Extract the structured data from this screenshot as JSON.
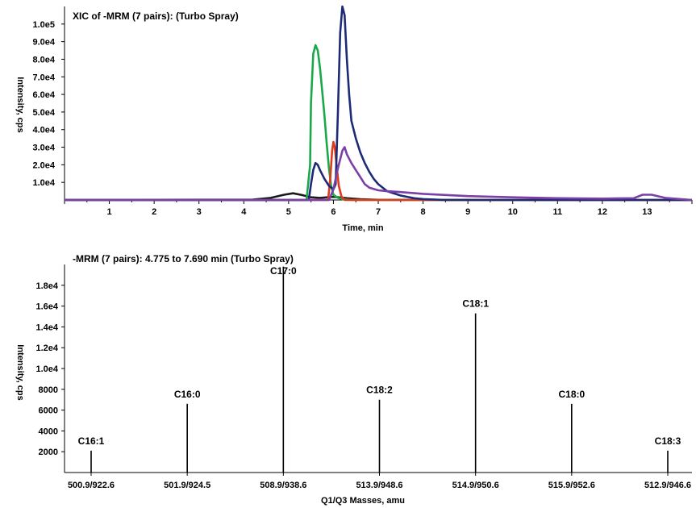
{
  "chart_data": [
    {
      "type": "line",
      "title": "XIC of -MRM (7 pairs): (Turbo Spray)",
      "xlabel": "Time, min",
      "ylabel": "Intensity, cps",
      "xlim": [
        0,
        14
      ],
      "ylim": [
        0,
        110000
      ],
      "x_ticks": [
        "1",
        "2",
        "3",
        "4",
        "5",
        "6",
        "7",
        "8",
        "9",
        "10",
        "11",
        "12",
        "13"
      ],
      "y_ticks": [
        "1.0e4",
        "2.0e4",
        "3.0e4",
        "4.0e4",
        "5.0e4",
        "6.0e4",
        "7.0e4",
        "8.0e4",
        "9.0e4",
        "1.0e5"
      ],
      "y_tick_values": [
        10000,
        20000,
        30000,
        40000,
        50000,
        60000,
        70000,
        80000,
        90000,
        100000
      ],
      "grid": false,
      "series": [
        {
          "color": "#1a1a1a",
          "x": [
            0,
            4.2,
            4.6,
            4.9,
            5.1,
            5.3,
            5.5,
            5.7,
            6.0,
            6.3,
            6.6,
            7.0,
            14
          ],
          "y": [
            0,
            200,
            1200,
            3000,
            3800,
            2800,
            1500,
            1200,
            1800,
            1000,
            400,
            100,
            0
          ]
        },
        {
          "color": "#1aa84a",
          "x": [
            0,
            5.4,
            5.48,
            5.5,
            5.55,
            5.6,
            5.65,
            5.7,
            5.75,
            5.8,
            5.85,
            5.9,
            5.95,
            6.0,
            6.1,
            6.2,
            6.4,
            14
          ],
          "y": [
            0,
            0,
            20000,
            55000,
            83000,
            88000,
            85000,
            75000,
            62000,
            48000,
            32000,
            18000,
            8000,
            3000,
            1200,
            500,
            0,
            0
          ]
        },
        {
          "color": "#e03a1e",
          "x": [
            0,
            5.88,
            5.93,
            5.97,
            6.0,
            6.03,
            6.07,
            6.12,
            6.18,
            6.25,
            14
          ],
          "y": [
            0,
            0,
            12000,
            28000,
            33000,
            30000,
            20000,
            8000,
            2000,
            0,
            0
          ]
        },
        {
          "color": "#1c2a78",
          "x": [
            0,
            5.45,
            5.5,
            5.55,
            5.6,
            5.65,
            5.7,
            5.8,
            5.9,
            6.0,
            6.05,
            6.1,
            6.15,
            6.2,
            6.25,
            6.3,
            6.35,
            6.4,
            6.5,
            6.6,
            6.7,
            6.8,
            6.9,
            7.0,
            7.2,
            7.5,
            7.8,
            8.0,
            8.5,
            14
          ],
          "y": [
            0,
            0,
            9000,
            17000,
            21000,
            20000,
            17000,
            12000,
            8000,
            6000,
            9000,
            50000,
            95000,
            110000,
            105000,
            80000,
            60000,
            45000,
            35000,
            27000,
            21000,
            16000,
            12000,
            9000,
            5000,
            2500,
            1000,
            500,
            0,
            0
          ]
        },
        {
          "color": "#7b3fa8",
          "x": [
            0,
            5.9,
            6.0,
            6.1,
            6.2,
            6.25,
            6.3,
            6.4,
            6.5,
            6.6,
            6.7,
            6.8,
            7.0,
            7.2,
            7.5,
            8.0,
            9.0,
            10.0,
            11.0,
            12.0,
            12.7,
            12.9,
            13.1,
            13.4,
            14
          ],
          "y": [
            0,
            0,
            6000,
            18000,
            28000,
            30000,
            26000,
            21000,
            17000,
            13000,
            9000,
            7000,
            5500,
            5000,
            4500,
            3500,
            2200,
            1500,
            1000,
            800,
            1000,
            3000,
            3000,
            1200,
            0
          ]
        }
      ]
    },
    {
      "type": "bar",
      "title": "-MRM (7 pairs): 4.775 to 7.690 min (Turbo Spray)",
      "xlabel": "Q1/Q3 Masses, amu",
      "ylabel": "Intensity, cps",
      "ylim": [
        0,
        20000
      ],
      "y_ticks": [
        "2000",
        "4000",
        "6000",
        "8000",
        "1.0e4",
        "1.2e4",
        "1.4e4",
        "1.6e4",
        "1.8e4"
      ],
      "y_tick_values": [
        2000,
        4000,
        6000,
        8000,
        10000,
        12000,
        14000,
        16000,
        18000
      ],
      "categories": [
        "500.9/922.6",
        "501.9/924.5",
        "508.9/938.6",
        "513.9/948.6",
        "514.9/950.6",
        "515.9/952.6",
        "512.9/946.6"
      ],
      "labels": [
        "C16:1",
        "C16:0",
        "C17:0",
        "C18:2",
        "C18:1",
        "C18:0",
        "C18:3"
      ],
      "values": [
        2100,
        6600,
        19800,
        7000,
        15300,
        6600,
        2100
      ],
      "grid": false
    }
  ]
}
